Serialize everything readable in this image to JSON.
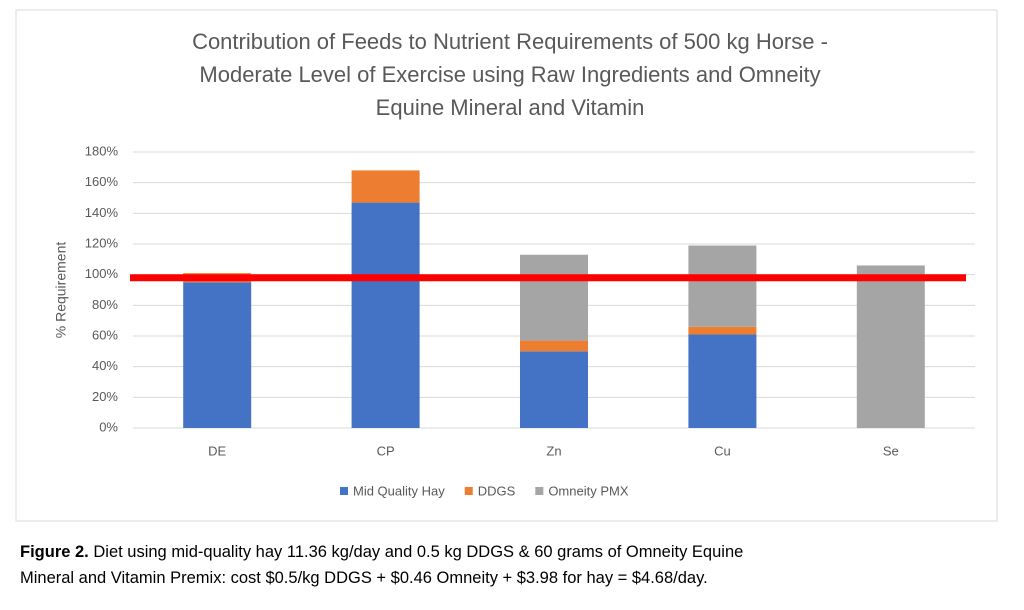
{
  "chart_data": {
    "type": "stacked_bar",
    "title": [
      "Contribution of Feeds to Nutrient Requirements of 500 kg Horse -",
      "Moderate Level of Exercise using Raw Ingredients and Omneity",
      "Equine Mineral and Vitamin"
    ],
    "y_label": "% Requirement",
    "categories": [
      "DE",
      "CP",
      "Zn",
      "Cu",
      "Se"
    ],
    "series": [
      {
        "name": "Mid Quality Hay",
        "color": "#4472c4",
        "values": [
          95,
          147,
          50,
          61,
          0
        ]
      },
      {
        "name": "DDGS",
        "color": "#ed7d31",
        "values": [
          6,
          21,
          7,
          5,
          0
        ]
      },
      {
        "name": "Omneity PMX",
        "color": "#a5a5a5",
        "values": [
          0,
          0,
          56,
          53,
          106
        ]
      }
    ],
    "ylim": [
      0,
      180
    ],
    "yticks": [
      {
        "value": 0,
        "label": "0%"
      },
      {
        "value": 20,
        "label": "20%"
      },
      {
        "value": 40,
        "label": "40%"
      },
      {
        "value": 60,
        "label": "60%"
      },
      {
        "value": 80,
        "label": "80%"
      },
      {
        "value": 100,
        "label": "100%"
      },
      {
        "value": 120,
        "label": "120%"
      },
      {
        "value": 140,
        "label": "140%"
      },
      {
        "value": 160,
        "label": "160%"
      },
      {
        "value": 180,
        "label": "180%"
      }
    ],
    "grid": true,
    "reference_line": {
      "value": 98,
      "color": "#ff0000"
    },
    "legend": "bottom"
  },
  "caption": {
    "label": "Figure 2.",
    "lines": [
      "Diet using mid-quality hay 11.36 kg/day and 0.5 kg DDGS & 60 grams of Omneity Equine",
      "Mineral and Vitamin Premix: cost $0.5/kg DDGS + $0.46 Omneity + $3.98 for hay = $4.68/day."
    ]
  }
}
